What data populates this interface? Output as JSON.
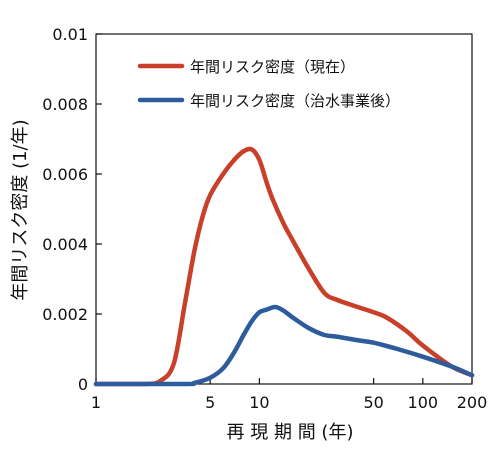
{
  "chart_data": {
    "type": "line",
    "xlabel": "再 現 期 間 (年)",
    "ylabel": "年間リスク密度 (1/年)",
    "xscale": "log",
    "xlim": [
      1,
      200
    ],
    "ylim": [
      0,
      0.01
    ],
    "xticks": [
      {
        "value": 1,
        "label": "1"
      },
      {
        "value": 5,
        "label": "5"
      },
      {
        "value": 10,
        "label": "10"
      },
      {
        "value": 50,
        "label": "50"
      },
      {
        "value": 100,
        "label": "100"
      },
      {
        "value": 200,
        "label": "200"
      }
    ],
    "yticks": [
      {
        "value": 0,
        "label": "0"
      },
      {
        "value": 0.002,
        "label": "0.002"
      },
      {
        "value": 0.004,
        "label": "0.004"
      },
      {
        "value": 0.006,
        "label": "0.006"
      },
      {
        "value": 0.008,
        "label": "0.008"
      },
      {
        "value": 0.01,
        "label": "0.01"
      }
    ],
    "legend_position": "top-center",
    "grid": false,
    "series": [
      {
        "name": "年間リスク密度（現在）",
        "color": "#c8402a",
        "points": [
          [
            1,
            0
          ],
          [
            2,
            0
          ],
          [
            2.5,
            0.0001
          ],
          [
            3,
            0.0006
          ],
          [
            3.5,
            0.0023
          ],
          [
            4,
            0.0038
          ],
          [
            4.5,
            0.0048
          ],
          [
            5,
            0.0054
          ],
          [
            6,
            0.006
          ],
          [
            7,
            0.0064
          ],
          [
            8,
            0.00665
          ],
          [
            9,
            0.0067
          ],
          [
            10,
            0.0064
          ],
          [
            11,
            0.0058
          ],
          [
            12,
            0.0053
          ],
          [
            14,
            0.0046
          ],
          [
            16,
            0.0041
          ],
          [
            20,
            0.0033
          ],
          [
            25,
            0.0026
          ],
          [
            30,
            0.0024
          ],
          [
            40,
            0.0022
          ],
          [
            50,
            0.00205
          ],
          [
            60,
            0.0019
          ],
          [
            80,
            0.0015
          ],
          [
            100,
            0.0011
          ],
          [
            150,
            0.0005
          ],
          [
            200,
            0.00025
          ]
        ]
      },
      {
        "name": "年間リスク密度（治水事業後）",
        "color": "#2d5b9c",
        "points": [
          [
            1,
            0
          ],
          [
            3.5,
            0
          ],
          [
            4,
            3e-05
          ],
          [
            5,
            0.00018
          ],
          [
            6,
            0.00045
          ],
          [
            7,
            0.0009
          ],
          [
            8,
            0.0014
          ],
          [
            9,
            0.0018
          ],
          [
            10,
            0.00205
          ],
          [
            11,
            0.00212
          ],
          [
            12.5,
            0.0022
          ],
          [
            14,
            0.0021
          ],
          [
            16,
            0.0019
          ],
          [
            20,
            0.0016
          ],
          [
            25,
            0.0014
          ],
          [
            30,
            0.00135
          ],
          [
            40,
            0.00125
          ],
          [
            50,
            0.00118
          ],
          [
            70,
            0.001
          ],
          [
            100,
            0.00078
          ],
          [
            150,
            0.0005
          ],
          [
            200,
            0.00025
          ]
        ]
      }
    ]
  }
}
